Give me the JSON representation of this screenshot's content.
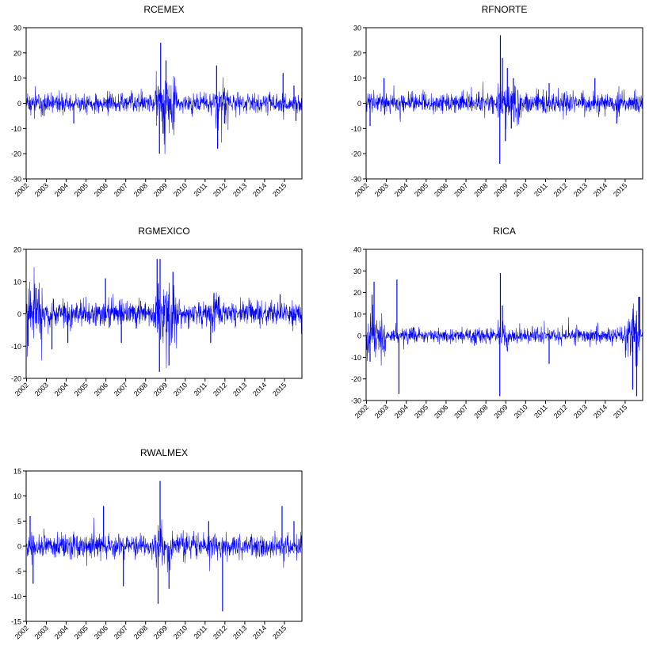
{
  "chart_data": [
    {
      "type": "line",
      "title": "RCEMEX",
      "ylim": [
        -30,
        30
      ],
      "yticks": [
        30,
        20,
        10,
        0,
        -10,
        -20,
        -30
      ],
      "x_range": [
        "2002",
        "2015"
      ],
      "x_ticks": [
        "2002",
        "2003",
        "2004",
        "2005",
        "2006",
        "2007",
        "2008",
        "2009",
        "2010",
        "2011",
        "2012",
        "2013",
        "2014",
        "2015"
      ],
      "series_color": "#0000ff",
      "typical_amplitude": 2.2,
      "extremes": [
        {
          "x": 2002.9,
          "y": -5
        },
        {
          "x": 2004.4,
          "y": -8
        },
        {
          "x": 2008.78,
          "y": 24
        },
        {
          "x": 2008.72,
          "y": -20
        },
        {
          "x": 2009.05,
          "y": 17
        },
        {
          "x": 2008.9,
          "y": -12
        },
        {
          "x": 2011.6,
          "y": 15
        },
        {
          "x": 2011.65,
          "y": -18
        },
        {
          "x": 2012.0,
          "y": -8
        },
        {
          "x": 2014.95,
          "y": 12
        },
        {
          "x": 2015.5,
          "y": 7
        },
        {
          "x": 2015.6,
          "y": -7
        }
      ],
      "volatile_periods": [
        [
          2008.5,
          2009.6,
          3.0
        ],
        [
          2011.5,
          2012.2,
          2.0
        ]
      ]
    },
    {
      "type": "line",
      "title": "RFNORTE",
      "ylim": [
        -30,
        30
      ],
      "yticks": [
        30,
        20,
        10,
        0,
        -10,
        -20,
        -30
      ],
      "x_range": [
        "2002",
        "2015"
      ],
      "x_ticks": [
        "2002",
        "2003",
        "2004",
        "2005",
        "2006",
        "2007",
        "2008",
        "2009",
        "2010",
        "2011",
        "2012",
        "2013",
        "2014",
        "2015"
      ],
      "series_color": "#0000ff",
      "typical_amplitude": 2.4,
      "extremes": [
        {
          "x": 2002.2,
          "y": -9
        },
        {
          "x": 2002.9,
          "y": 10
        },
        {
          "x": 2008.75,
          "y": 27
        },
        {
          "x": 2008.72,
          "y": -24
        },
        {
          "x": 2008.85,
          "y": 18
        },
        {
          "x": 2009.1,
          "y": 14
        },
        {
          "x": 2009.0,
          "y": -15
        },
        {
          "x": 2009.4,
          "y": 10
        },
        {
          "x": 2009.3,
          "y": -10
        },
        {
          "x": 2011.2,
          "y": 8
        },
        {
          "x": 2013.5,
          "y": 10
        },
        {
          "x": 2014.6,
          "y": -8
        }
      ],
      "volatile_periods": [
        [
          2008.6,
          2009.8,
          2.5
        ]
      ]
    },
    {
      "type": "line",
      "title": "RGMEXICO",
      "ylim": [
        -20,
        20
      ],
      "yticks": [
        20,
        10,
        0,
        -10,
        -20
      ],
      "x_range": [
        "2002",
        "2015"
      ],
      "x_ticks": [
        "2002",
        "2003",
        "2004",
        "2005",
        "2006",
        "2007",
        "2008",
        "2009",
        "2010",
        "2011",
        "2012",
        "2013",
        "2014",
        "2015"
      ],
      "series_color": "#0000ff",
      "typical_amplitude": 2.3,
      "extremes": [
        {
          "x": 2002.1,
          "y": -10
        },
        {
          "x": 2002.5,
          "y": 8
        },
        {
          "x": 2003.3,
          "y": -11
        },
        {
          "x": 2004.1,
          "y": -9
        },
        {
          "x": 2006.0,
          "y": 11
        },
        {
          "x": 2006.8,
          "y": -9
        },
        {
          "x": 2008.6,
          "y": 17
        },
        {
          "x": 2008.72,
          "y": -18
        },
        {
          "x": 2008.75,
          "y": 17
        },
        {
          "x": 2009.4,
          "y": 13
        },
        {
          "x": 2009.2,
          "y": -16
        },
        {
          "x": 2011.3,
          "y": -9
        },
        {
          "x": 2014.8,
          "y": 6
        }
      ],
      "volatile_periods": [
        [
          2002.0,
          2002.8,
          2.2
        ],
        [
          2008.5,
          2009.6,
          2.6
        ],
        [
          2011.3,
          2011.9,
          1.5
        ]
      ]
    },
    {
      "type": "line",
      "title": "RICA",
      "ylim": [
        -30,
        40
      ],
      "yticks": [
        40,
        30,
        20,
        10,
        0,
        -10,
        -20,
        -30
      ],
      "x_range": [
        "2002",
        "2015"
      ],
      "x_ticks": [
        "2002",
        "2003",
        "2004",
        "2005",
        "2006",
        "2007",
        "2008",
        "2009",
        "2010",
        "2011",
        "2012",
        "2013",
        "2014",
        "2015"
      ],
      "series_color": "#0000ff",
      "typical_amplitude": 2.0,
      "extremes": [
        {
          "x": 2002.4,
          "y": 25
        },
        {
          "x": 2002.3,
          "y": 19
        },
        {
          "x": 2002.2,
          "y": -12
        },
        {
          "x": 2003.55,
          "y": 26
        },
        {
          "x": 2003.65,
          "y": -27
        },
        {
          "x": 2008.75,
          "y": 29
        },
        {
          "x": 2008.72,
          "y": -28
        },
        {
          "x": 2008.85,
          "y": 14
        },
        {
          "x": 2011.2,
          "y": -13
        },
        {
          "x": 2015.4,
          "y": -25
        },
        {
          "x": 2015.6,
          "y": -28
        },
        {
          "x": 2015.75,
          "y": 18
        },
        {
          "x": 2015.7,
          "y": 18
        }
      ],
      "volatile_periods": [
        [
          2002.0,
          2003.0,
          3.0
        ],
        [
          2008.6,
          2009.2,
          2.0
        ],
        [
          2015.0,
          2015.8,
          3.5
        ]
      ]
    },
    {
      "type": "line",
      "title": "RWALMEX",
      "ylim": [
        -15,
        15
      ],
      "yticks": [
        15,
        10,
        5,
        0,
        -5,
        -10,
        -15
      ],
      "x_range": [
        "2002",
        "2015"
      ],
      "x_ticks": [
        "2002",
        "2003",
        "2004",
        "2005",
        "2006",
        "2007",
        "2008",
        "2009",
        "2010",
        "2011",
        "2012",
        "2013",
        "2014",
        "2015"
      ],
      "series_color": "#0000ff",
      "typical_amplitude": 1.4,
      "extremes": [
        {
          "x": 2002.2,
          "y": 6
        },
        {
          "x": 2002.35,
          "y": -7.5
        },
        {
          "x": 2005.9,
          "y": 8
        },
        {
          "x": 2006.9,
          "y": -8
        },
        {
          "x": 2008.75,
          "y": 13
        },
        {
          "x": 2008.65,
          "y": -11.5
        },
        {
          "x": 2009.2,
          "y": -8.5
        },
        {
          "x": 2011.2,
          "y": 5
        },
        {
          "x": 2011.9,
          "y": -13
        },
        {
          "x": 2014.9,
          "y": 8
        },
        {
          "x": 2015.5,
          "y": 5
        }
      ],
      "volatile_periods": [
        [
          2008.5,
          2009.4,
          1.6
        ]
      ]
    }
  ]
}
